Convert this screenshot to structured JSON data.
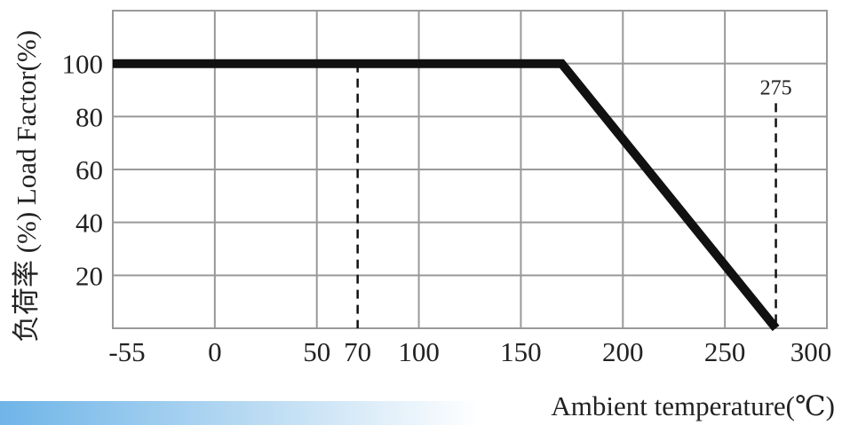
{
  "chart_data": {
    "type": "line",
    "title": "",
    "xlabel": "Ambient temperature(℃)",
    "ylabel": "负荷率 (%) Load Factor(%)",
    "x_tick_labels": [
      "-55",
      "0",
      "50",
      "70",
      "100",
      "150",
      "200",
      "250",
      "300"
    ],
    "y_tick_labels": [
      "20",
      "40",
      "60",
      "80",
      "100"
    ],
    "grid": true,
    "series": [
      {
        "x": [
          -55,
          170,
          275
        ],
        "y": [
          100,
          100,
          0
        ]
      }
    ],
    "reference_lines": [
      {
        "x": 70,
        "y_from": 0,
        "y_to": 100,
        "style": "dashed"
      },
      {
        "x": 275,
        "y_from": 0,
        "y_to": 85,
        "style": "dashed",
        "label": "275"
      }
    ],
    "colors": {
      "line": "#111111",
      "grid": "#999999",
      "gradient_start": "#6fb5e8"
    }
  }
}
